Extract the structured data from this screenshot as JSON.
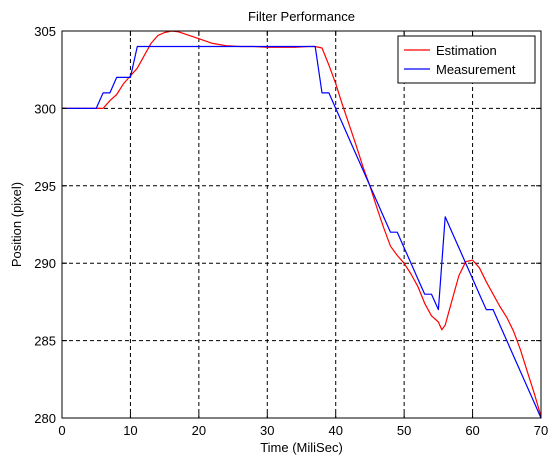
{
  "chart_data": {
    "type": "line",
    "title": "Filter Performance",
    "xlabel": "Time (MiliSec)",
    "ylabel": "Position (pixel)",
    "xlim": [
      0,
      70
    ],
    "ylim": [
      280,
      305
    ],
    "xticks": [
      0,
      10,
      20,
      30,
      40,
      50,
      60,
      70
    ],
    "yticks": [
      280,
      285,
      290,
      295,
      300,
      305
    ],
    "grid": true,
    "grid_style": "dashed",
    "legend_position": "top-right",
    "series": [
      {
        "name": "Estimation",
        "color": "#ff0000",
        "x": [
          0,
          6,
          7,
          8,
          9,
          10,
          11,
          12,
          13,
          14,
          15,
          16,
          17,
          18,
          20,
          22,
          24,
          26,
          28,
          30,
          32,
          34,
          36,
          37,
          38,
          39,
          40,
          41,
          42,
          43,
          44,
          45,
          46,
          47,
          48,
          49,
          50,
          51,
          52,
          53,
          54,
          55,
          55.5,
          56,
          56.5,
          57,
          58,
          59,
          60,
          61,
          62,
          63,
          64,
          65,
          66,
          67,
          68,
          69,
          70
        ],
        "y": [
          300,
          300,
          300.5,
          300.9,
          301.6,
          302.1,
          302.6,
          303.4,
          304.2,
          304.7,
          304.9,
          305,
          304.95,
          304.8,
          304.5,
          304.2,
          304.05,
          304,
          304,
          303.95,
          303.95,
          303.95,
          304,
          304,
          303.9,
          302.8,
          301.6,
          300.2,
          298.9,
          297.6,
          296.2,
          295,
          293.6,
          292.3,
          291.1,
          290.5,
          290,
          289.3,
          288.5,
          287.4,
          286.6,
          286.2,
          285.7,
          286,
          286.8,
          287.6,
          289.2,
          290.1,
          290.2,
          289.7,
          288.8,
          288,
          287.2,
          286.5,
          285.6,
          284.4,
          283,
          281.6,
          280.1
        ]
      },
      {
        "name": "Measurement",
        "color": "#0000ff",
        "x": [
          0,
          5,
          6,
          7,
          8,
          9,
          10,
          11,
          11.01,
          12,
          15,
          20,
          25,
          28,
          29,
          34,
          35,
          36,
          37,
          37.5,
          38,
          38.5,
          39,
          40,
          41,
          42,
          43,
          44,
          45,
          46,
          47,
          48,
          49,
          50,
          51,
          52,
          53,
          54,
          55,
          56,
          57,
          58,
          59,
          60,
          61,
          62,
          63,
          64,
          65,
          66,
          67,
          68,
          69,
          70
        ],
        "y": [
          300,
          300,
          301,
          301,
          302,
          302,
          302,
          304,
          304,
          304,
          304,
          304,
          304,
          304,
          304,
          304,
          304,
          304,
          304,
          302.5,
          301,
          301,
          301,
          300,
          299,
          298,
          297,
          296,
          295,
          294,
          293,
          292,
          292,
          291,
          290,
          289,
          288,
          288,
          287,
          293,
          292,
          291,
          290,
          289,
          288,
          287,
          287,
          286,
          285,
          284,
          283,
          282,
          281,
          280
        ]
      }
    ]
  }
}
